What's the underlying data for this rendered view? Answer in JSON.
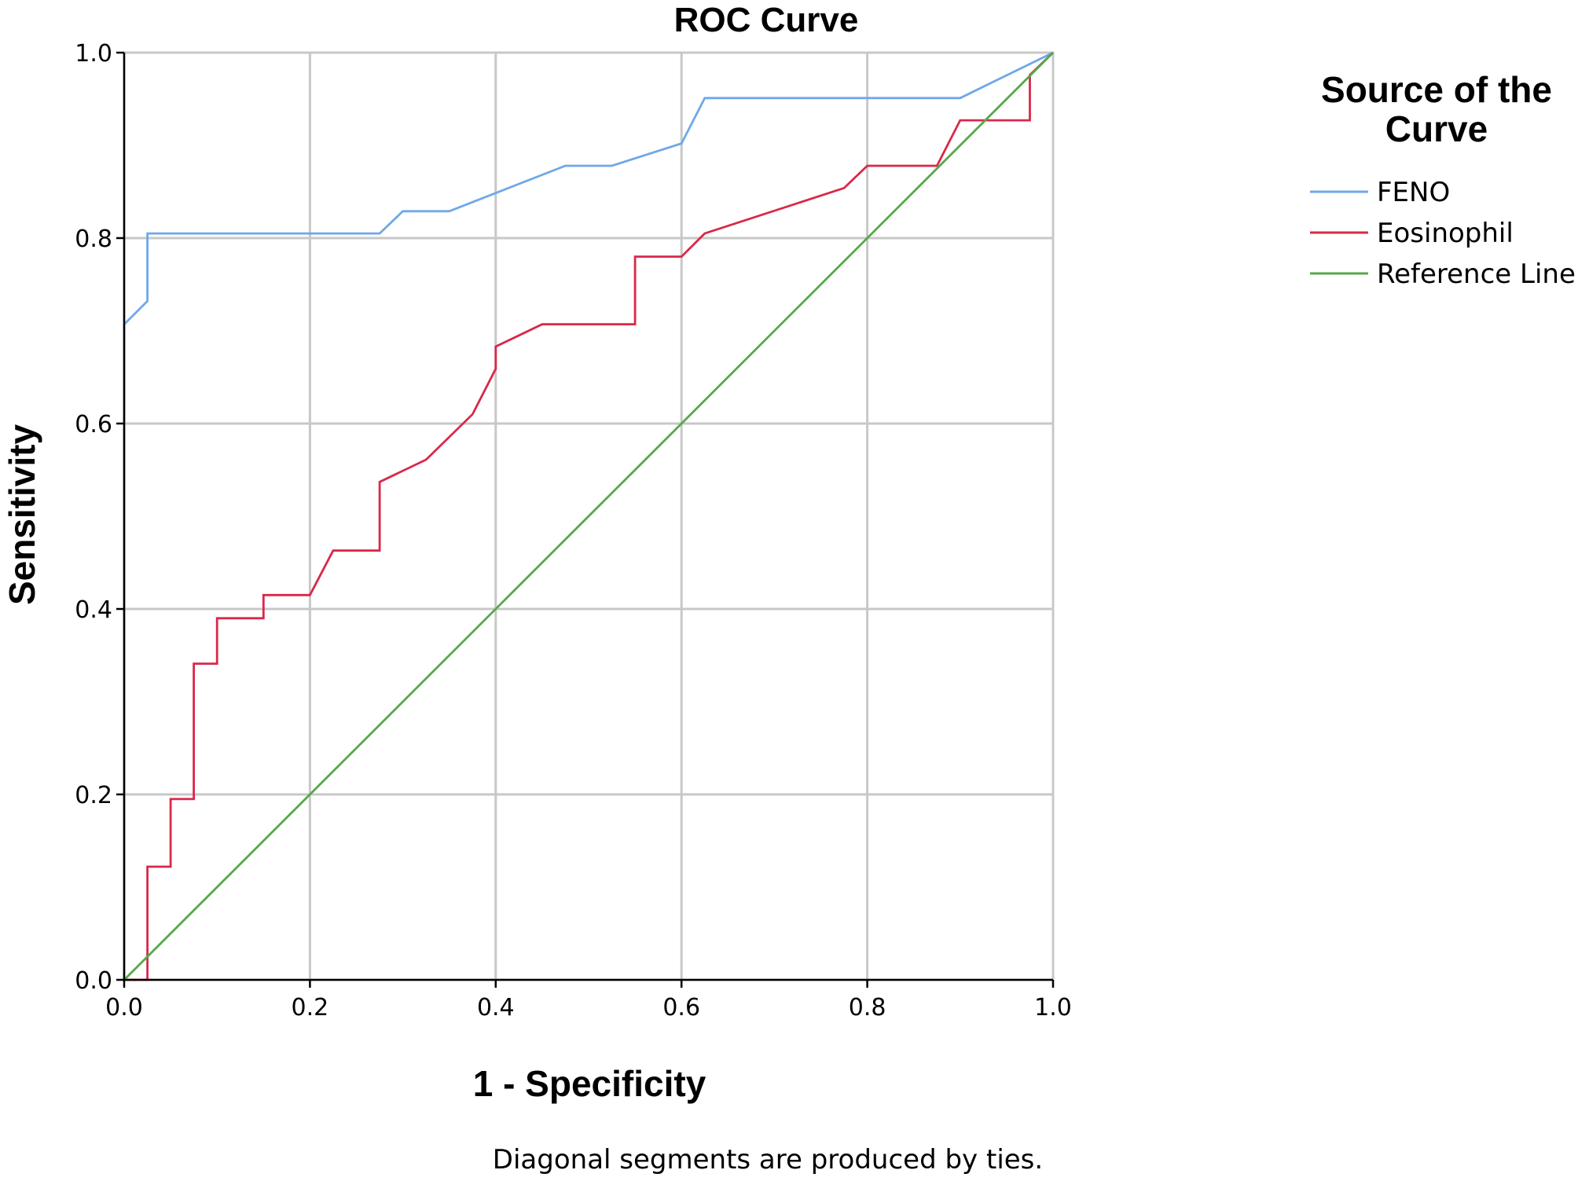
{
  "chart_data": {
    "type": "line",
    "title": "ROC Curve",
    "xlabel": "1 - Specificity",
    "ylabel": "Sensitivity",
    "xlim": [
      0,
      1
    ],
    "ylim": [
      0,
      1
    ],
    "grid": true,
    "x_ticks": [
      "0.0",
      "0.2",
      "0.4",
      "0.6",
      "0.8",
      "1.0"
    ],
    "y_ticks": [
      "0.0",
      "0.2",
      "0.4",
      "0.6",
      "0.8",
      "1.0"
    ],
    "x_tick_values": [
      0,
      0.2,
      0.4,
      0.6,
      0.8,
      1.0
    ],
    "y_tick_values": [
      0,
      0.2,
      0.4,
      0.6,
      0.8,
      1.0
    ],
    "legend_title_lines": [
      "Source of the",
      "Curve"
    ],
    "legend_position": "top-right",
    "footnote": "Diagonal segments are produced by ties.",
    "series": [
      {
        "name": "FENO",
        "color": "#6fa8e8",
        "points": [
          [
            0,
            0
          ],
          [
            0,
            0.707
          ],
          [
            0.025,
            0.732
          ],
          [
            0.025,
            0.805
          ],
          [
            0.275,
            0.805
          ],
          [
            0.3,
            0.829
          ],
          [
            0.35,
            0.829
          ],
          [
            0.475,
            0.878
          ],
          [
            0.525,
            0.878
          ],
          [
            0.6,
            0.902
          ],
          [
            0.625,
            0.951
          ],
          [
            0.9,
            0.951
          ],
          [
            1.0,
            1.0
          ]
        ]
      },
      {
        "name": "Eosinophil",
        "color": "#d9284a",
        "points": [
          [
            0,
            0
          ],
          [
            0.025,
            0
          ],
          [
            0.025,
            0.122
          ],
          [
            0.05,
            0.122
          ],
          [
            0.05,
            0.195
          ],
          [
            0.075,
            0.195
          ],
          [
            0.075,
            0.341
          ],
          [
            0.1,
            0.341
          ],
          [
            0.1,
            0.39
          ],
          [
            0.15,
            0.39
          ],
          [
            0.15,
            0.415
          ],
          [
            0.2,
            0.415
          ],
          [
            0.225,
            0.463
          ],
          [
            0.275,
            0.463
          ],
          [
            0.275,
            0.537
          ],
          [
            0.325,
            0.561
          ],
          [
            0.375,
            0.61
          ],
          [
            0.4,
            0.659
          ],
          [
            0.4,
            0.683
          ],
          [
            0.45,
            0.707
          ],
          [
            0.55,
            0.707
          ],
          [
            0.55,
            0.78
          ],
          [
            0.6,
            0.78
          ],
          [
            0.625,
            0.805
          ],
          [
            0.775,
            0.854
          ],
          [
            0.8,
            0.878
          ],
          [
            0.875,
            0.878
          ],
          [
            0.9,
            0.927
          ],
          [
            0.975,
            0.927
          ],
          [
            0.975,
            0.976
          ],
          [
            1.0,
            1.0
          ]
        ]
      },
      {
        "name": "Reference Line",
        "color": "#56a84a",
        "points": [
          [
            0,
            0
          ],
          [
            1.0,
            1.0
          ]
        ]
      }
    ]
  }
}
